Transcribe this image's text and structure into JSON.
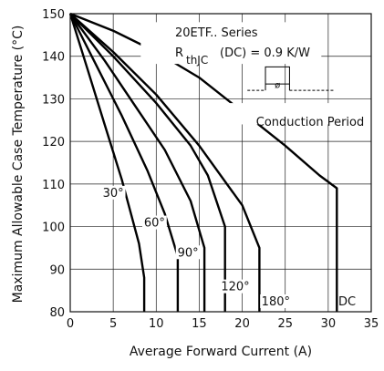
{
  "chart_data": {
    "type": "line",
    "title": "",
    "xlabel": "Average Forward Current (A)",
    "ylabel": "Maximum Allowable Case Temperature (°C)",
    "xlim": [
      0,
      35
    ],
    "ylim": [
      80,
      150
    ],
    "xticks": [
      0,
      5,
      10,
      15,
      20,
      25,
      30,
      35
    ],
    "yticks": [
      80,
      90,
      100,
      110,
      120,
      130,
      140,
      150
    ],
    "grid": true,
    "annotations": {
      "series_name": "20ETF.. Series",
      "rth_prefix": "R",
      "rth_subscript": "thJC",
      "rth_suffix": "(DC) = 0.9 K/W",
      "conduction_symbol": "ø",
      "conduction_label": "Conduction Period"
    },
    "series": [
      {
        "label": "30°",
        "points": [
          [
            0,
            150
          ],
          [
            2,
            137
          ],
          [
            4,
            124
          ],
          [
            6,
            111
          ],
          [
            8,
            96
          ],
          [
            8.6,
            88
          ],
          [
            8.6,
            80
          ]
        ]
      },
      {
        "label": "60°",
        "points": [
          [
            0,
            150
          ],
          [
            3,
            138
          ],
          [
            6,
            126
          ],
          [
            9,
            113
          ],
          [
            11,
            103
          ],
          [
            12.5,
            93
          ],
          [
            12.5,
            80
          ]
        ]
      },
      {
        "label": "90°",
        "points": [
          [
            0,
            150
          ],
          [
            4,
            139
          ],
          [
            8,
            127
          ],
          [
            11,
            118
          ],
          [
            14,
            106
          ],
          [
            15.6,
            95
          ],
          [
            15.6,
            80
          ]
        ]
      },
      {
        "label": "120°",
        "points": [
          [
            0,
            150
          ],
          [
            5,
            140
          ],
          [
            10,
            129
          ],
          [
            14,
            119
          ],
          [
            16,
            112
          ],
          [
            18,
            100
          ],
          [
            18,
            80
          ]
        ]
      },
      {
        "label": "180°",
        "points": [
          [
            0,
            150
          ],
          [
            5,
            141
          ],
          [
            10,
            131
          ],
          [
            15,
            119
          ],
          [
            20,
            105
          ],
          [
            22,
            95
          ],
          [
            22,
            80
          ]
        ]
      },
      {
        "label": "DC",
        "points": [
          [
            0,
            150
          ],
          [
            5,
            146
          ],
          [
            10,
            141
          ],
          [
            15,
            135
          ],
          [
            20,
            127
          ],
          [
            25,
            119
          ],
          [
            29,
            112
          ],
          [
            31,
            109
          ],
          [
            31,
            80
          ]
        ]
      }
    ],
    "series_label_positions": [
      {
        "text": "30°",
        "x": 5,
        "y": 107
      },
      {
        "text": "60°",
        "x": 9.8,
        "y": 100
      },
      {
        "text": "90°",
        "x": 13.7,
        "y": 93
      },
      {
        "text": "120°",
        "x": 19.2,
        "y": 85
      },
      {
        "text": "180°",
        "x": 23.9,
        "y": 81.5
      },
      {
        "text": "DC",
        "x": 32.2,
        "y": 81.5
      }
    ]
  }
}
